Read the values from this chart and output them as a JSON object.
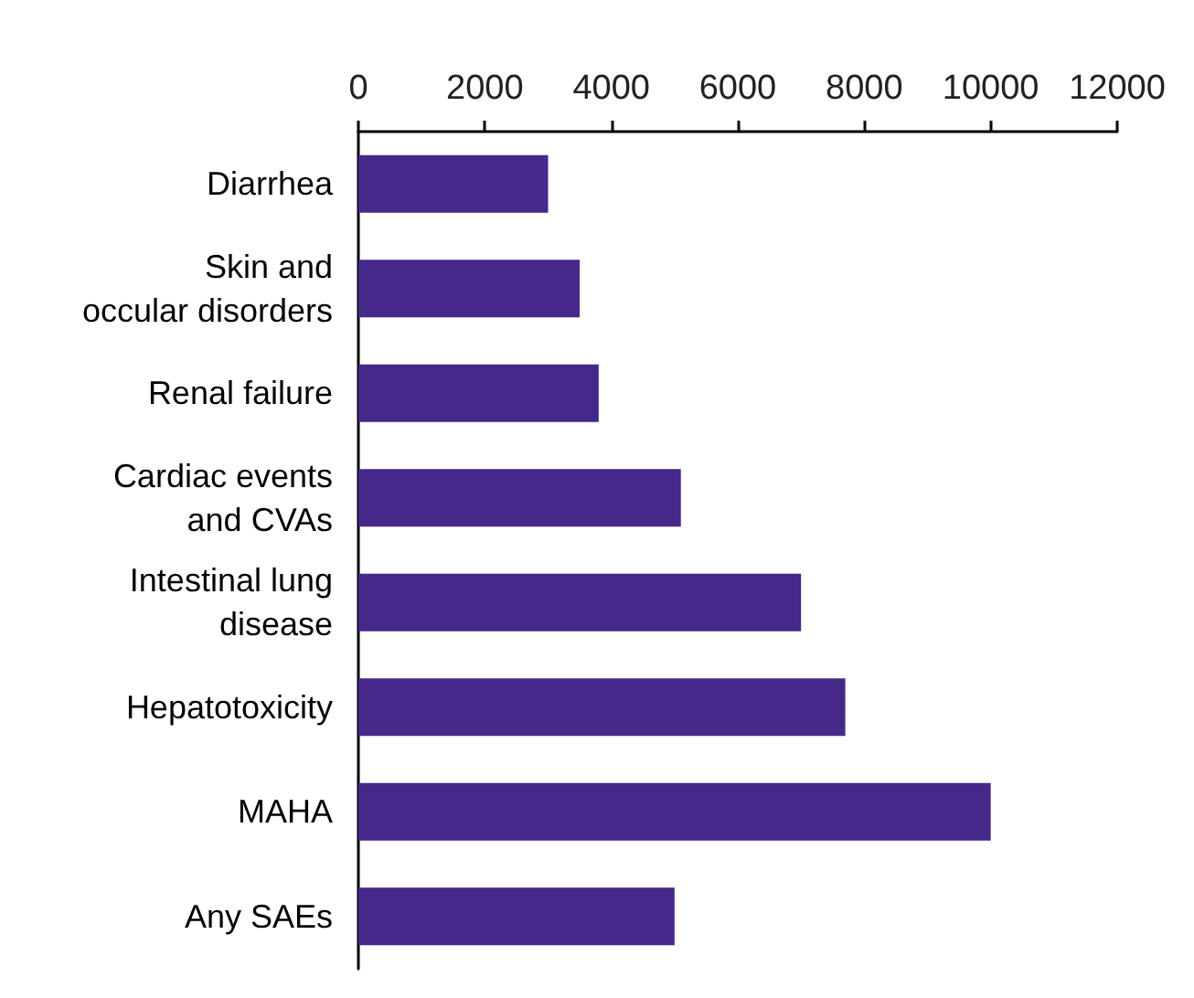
{
  "chart_data": {
    "type": "bar",
    "orientation": "horizontal",
    "categories": [
      "Diarrhea",
      "Skin and\noccular disorders",
      "Renal failure",
      "Cardiac events\nand CVAs",
      "Intestinal lung\ndisease",
      "Hepatotoxicity",
      "MAHA",
      "Any SAEs"
    ],
    "values": [
      3000,
      3500,
      3800,
      5100,
      7000,
      7700,
      10000,
      5000
    ],
    "color": "#45288a",
    "xlim": [
      0,
      12000
    ],
    "xticks": [
      0,
      2000,
      4000,
      6000,
      8000,
      10000,
      12000
    ],
    "grid": false
  }
}
